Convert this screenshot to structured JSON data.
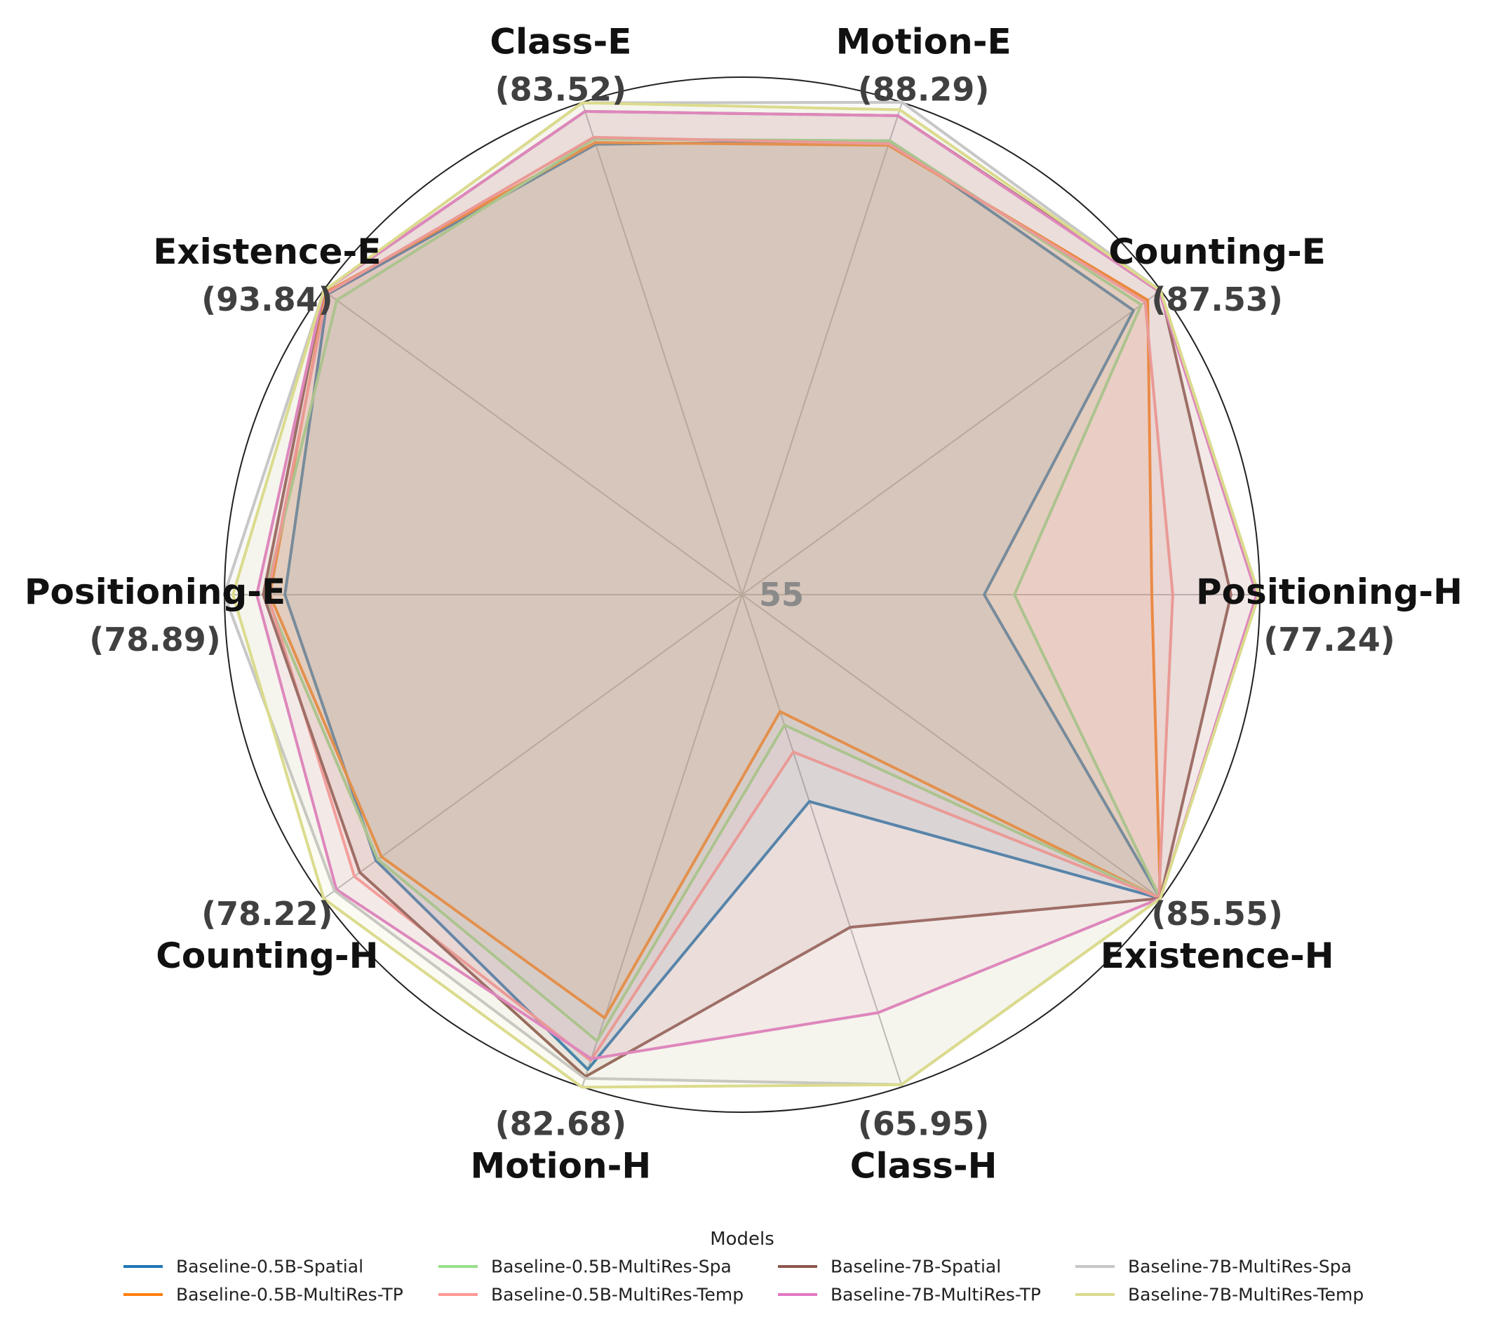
{
  "chart_data": {
    "type": "radar",
    "center_label": "55",
    "axes": [
      {
        "name": "Positioning-H",
        "max_label": "(77.24)",
        "max": 77.24
      },
      {
        "name": "Counting-E",
        "max_label": "(87.53)",
        "max": 87.53
      },
      {
        "name": "Motion-E",
        "max_label": "(88.29)",
        "max": 88.29
      },
      {
        "name": "Class-E",
        "max_label": "(83.52)",
        "max": 83.52
      },
      {
        "name": "Existence-E",
        "max_label": "(93.84)",
        "max": 93.84
      },
      {
        "name": "Positioning-E",
        "max_label": "(78.89)",
        "max": 78.89
      },
      {
        "name": "Counting-H",
        "max_label": "(78.22)",
        "max": 78.22
      },
      {
        "name": "Motion-H",
        "max_label": "(82.68)",
        "max": 82.68
      },
      {
        "name": "Class-H",
        "max_label": "(65.95)",
        "max": 65.95
      },
      {
        "name": "Existence-H",
        "max_label": "(85.55)",
        "max": 85.55
      }
    ],
    "radial_min": 55,
    "legend_title": "Models",
    "series": [
      {
        "name": "Baseline-0.5B-Spatial",
        "color": "#1f77b4",
        "values": [
          65.4,
          85.4,
          85.7,
          81.1,
          93.4,
          76.1,
          75.3,
          81.7,
          59.6,
          85.5
        ]
      },
      {
        "name": "Baseline-0.5B-MultiRes-TP",
        "color": "#ff7f0e",
        "values": [
          72.6,
          86.5,
          85.4,
          81.2,
          93.6,
          76.8,
          75.0,
          78.8,
          57.6,
          85.5
        ]
      },
      {
        "name": "Baseline-0.5B-MultiRes-Spa",
        "color": "#98df8a",
        "values": [
          66.7,
          86.0,
          85.7,
          81.4,
          92.6,
          77.0,
          75.2,
          80.1,
          57.9,
          85.5
        ]
      },
      {
        "name": "Baseline-0.5B-MultiRes-Temp",
        "color": "#ff9896",
        "values": [
          73.5,
          86.3,
          85.5,
          81.5,
          93.5,
          76.9,
          76.5,
          81.2,
          58.5,
          85.4
        ]
      },
      {
        "name": "Baseline-7B-Spatial",
        "color": "#8c564b",
        "values": [
          76.0,
          87.5,
          87.4,
          83.0,
          93.8,
          77.1,
          76.2,
          82.1,
          62.4,
          85.5
        ]
      },
      {
        "name": "Baseline-7B-MultiRes-TP",
        "color": "#e377c2",
        "values": [
          77.1,
          87.4,
          87.4,
          83.0,
          93.8,
          77.4,
          77.5,
          81.1,
          64.3,
          85.5
        ]
      },
      {
        "name": "Baseline-7B-MultiRes-Spa",
        "color": "#c7c7c7",
        "values": [
          77.2,
          87.5,
          88.3,
          83.5,
          93.8,
          78.9,
          77.6,
          82.2,
          65.9,
          85.5
        ]
      },
      {
        "name": "Baseline-7B-MultiRes-Temp",
        "color": "#dbdb8d",
        "values": [
          77.2,
          87.5,
          87.8,
          83.5,
          93.8,
          78.5,
          78.2,
          82.7,
          65.9,
          85.5
        ]
      }
    ]
  }
}
